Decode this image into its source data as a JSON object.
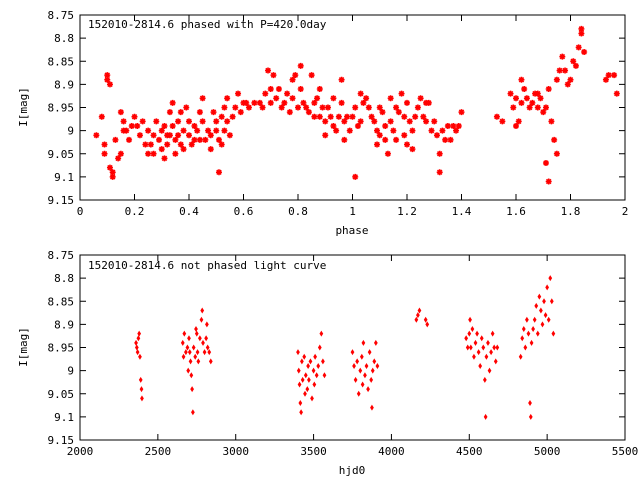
{
  "chart_data": [
    {
      "type": "scatter",
      "title": "152010-2814.6 phased with P=420.0day",
      "xlabel": "phase",
      "ylabel": "I[mag]",
      "xlim": [
        0,
        2
      ],
      "ylim": [
        9.15,
        8.75
      ],
      "y_inverted": true,
      "xticks": [
        "0",
        "0.2",
        "0.4",
        "0.6",
        "0.8",
        "1",
        "1.2",
        "1.4",
        "1.6",
        "1.8",
        "2"
      ],
      "yticks": [
        "8.75",
        "8.8",
        "8.85",
        "8.9",
        "8.95",
        "9",
        "9.05",
        "9.1",
        "9.15"
      ],
      "marker_color": "#ff0000",
      "grid": false,
      "points": [
        [
          0.06,
          9.01
        ],
        [
          0.08,
          8.97
        ],
        [
          0.09,
          9.05
        ],
        [
          0.09,
          9.03
        ],
        [
          0.1,
          8.89
        ],
        [
          0.1,
          8.88
        ],
        [
          0.11,
          8.9
        ],
        [
          0.11,
          9.08
        ],
        [
          0.12,
          9.1
        ],
        [
          0.12,
          9.09
        ],
        [
          0.13,
          9.02
        ],
        [
          0.14,
          9.06
        ],
        [
          0.15,
          9.05
        ],
        [
          0.15,
          8.96
        ],
        [
          0.16,
          8.98
        ],
        [
          0.16,
          9.0
        ],
        [
          0.17,
          9.0
        ],
        [
          0.18,
          9.02
        ],
        [
          0.19,
          8.99
        ],
        [
          0.2,
          8.97
        ],
        [
          0.21,
          8.99
        ],
        [
          0.22,
          9.01
        ],
        [
          0.23,
          8.98
        ],
        [
          0.24,
          9.03
        ],
        [
          0.25,
          9.0
        ],
        [
          0.25,
          9.05
        ],
        [
          0.26,
          9.03
        ],
        [
          0.27,
          9.01
        ],
        [
          0.27,
          9.05
        ],
        [
          0.28,
          8.98
        ],
        [
          0.29,
          9.02
        ],
        [
          0.3,
          9.0
        ],
        [
          0.3,
          9.04
        ],
        [
          0.31,
          9.06
        ],
        [
          0.31,
          8.99
        ],
        [
          0.32,
          9.01
        ],
        [
          0.32,
          9.03
        ],
        [
          0.33,
          8.96
        ],
        [
          0.33,
          9.01
        ],
        [
          0.34,
          8.94
        ],
        [
          0.34,
          8.99
        ],
        [
          0.35,
          9.02
        ],
        [
          0.35,
          9.05
        ],
        [
          0.36,
          8.98
        ],
        [
          0.36,
          9.01
        ],
        [
          0.37,
          9.03
        ],
        [
          0.37,
          8.96
        ],
        [
          0.38,
          9.0
        ],
        [
          0.38,
          9.04
        ],
        [
          0.39,
          8.95
        ],
        [
          0.4,
          8.98
        ],
        [
          0.4,
          9.01
        ],
        [
          0.41,
          9.03
        ],
        [
          0.42,
          8.99
        ],
        [
          0.42,
          9.02
        ],
        [
          0.43,
          9.0
        ],
        [
          0.44,
          8.96
        ],
        [
          0.44,
          9.02
        ],
        [
          0.45,
          8.98
        ],
        [
          0.45,
          8.93
        ],
        [
          0.46,
          9.02
        ],
        [
          0.47,
          9.0
        ],
        [
          0.48,
          9.01
        ],
        [
          0.48,
          9.04
        ],
        [
          0.49,
          8.96
        ],
        [
          0.5,
          9.0
        ],
        [
          0.5,
          8.98
        ],
        [
          0.51,
          9.02
        ],
        [
          0.51,
          9.09
        ],
        [
          0.52,
          9.03
        ],
        [
          0.52,
          8.97
        ],
        [
          0.53,
          8.95
        ],
        [
          0.53,
          9.0
        ],
        [
          0.54,
          8.93
        ],
        [
          0.54,
          8.98
        ],
        [
          0.55,
          9.01
        ],
        [
          0.56,
          8.97
        ],
        [
          0.57,
          8.95
        ],
        [
          0.58,
          8.92
        ],
        [
          0.59,
          8.96
        ],
        [
          0.6,
          8.94
        ],
        [
          0.61,
          8.94
        ],
        [
          0.62,
          8.95
        ],
        [
          0.64,
          8.94
        ],
        [
          0.66,
          8.94
        ],
        [
          0.67,
          8.95
        ],
        [
          0.68,
          8.92
        ],
        [
          0.69,
          8.87
        ],
        [
          0.7,
          8.91
        ],
        [
          0.7,
          8.94
        ],
        [
          0.71,
          8.88
        ],
        [
          0.72,
          8.93
        ],
        [
          0.73,
          8.91
        ],
        [
          0.74,
          8.95
        ],
        [
          0.75,
          8.94
        ],
        [
          0.76,
          8.92
        ],
        [
          0.77,
          8.96
        ],
        [
          0.78,
          8.93
        ],
        [
          0.78,
          8.89
        ],
        [
          0.79,
          8.88
        ],
        [
          0.8,
          8.95
        ],
        [
          0.81,
          8.86
        ],
        [
          0.81,
          8.91
        ],
        [
          0.82,
          8.94
        ],
        [
          0.83,
          8.95
        ],
        [
          0.84,
          8.96
        ],
        [
          0.85,
          8.88
        ],
        [
          0.86,
          8.94
        ],
        [
          0.86,
          8.97
        ],
        [
          0.87,
          8.93
        ],
        [
          0.88,
          8.97
        ],
        [
          0.88,
          8.91
        ],
        [
          0.89,
          8.95
        ],
        [
          0.9,
          8.98
        ],
        [
          0.9,
          9.01
        ],
        [
          0.91,
          8.95
        ],
        [
          0.92,
          8.97
        ],
        [
          0.93,
          8.99
        ],
        [
          0.93,
          8.93
        ],
        [
          0.94,
          9.0
        ],
        [
          0.95,
          8.97
        ],
        [
          0.96,
          8.89
        ],
        [
          0.96,
          8.94
        ],
        [
          0.97,
          8.98
        ],
        [
          0.97,
          9.02
        ],
        [
          0.98,
          8.97
        ],
        [
          0.99,
          9.0
        ],
        [
          1.0,
          8.97
        ],
        [
          1.01,
          8.95
        ],
        [
          1.01,
          9.1
        ],
        [
          1.02,
          8.99
        ],
        [
          1.03,
          8.98
        ],
        [
          1.03,
          8.92
        ],
        [
          1.04,
          8.94
        ],
        [
          1.05,
          8.93
        ],
        [
          1.06,
          8.95
        ],
        [
          1.07,
          8.97
        ],
        [
          1.08,
          8.98
        ],
        [
          1.09,
          9.0
        ],
        [
          1.09,
          9.03
        ],
        [
          1.1,
          8.95
        ],
        [
          1.1,
          9.01
        ],
        [
          1.11,
          8.96
        ],
        [
          1.12,
          8.99
        ],
        [
          1.12,
          9.02
        ],
        [
          1.13,
          9.05
        ],
        [
          1.14,
          8.98
        ],
        [
          1.14,
          8.93
        ],
        [
          1.15,
          9.0
        ],
        [
          1.16,
          9.02
        ],
        [
          1.16,
          8.95
        ],
        [
          1.17,
          8.96
        ],
        [
          1.18,
          8.92
        ],
        [
          1.19,
          8.97
        ],
        [
          1.19,
          9.01
        ],
        [
          1.2,
          9.03
        ],
        [
          1.2,
          8.94
        ],
        [
          1.21,
          8.98
        ],
        [
          1.22,
          9.0
        ],
        [
          1.22,
          9.04
        ],
        [
          1.23,
          8.97
        ],
        [
          1.24,
          8.95
        ],
        [
          1.25,
          8.93
        ],
        [
          1.26,
          8.97
        ],
        [
          1.27,
          8.94
        ],
        [
          1.27,
          8.98
        ],
        [
          1.28,
          8.94
        ],
        [
          1.29,
          9.0
        ],
        [
          1.3,
          8.98
        ],
        [
          1.31,
          9.01
        ],
        [
          1.32,
          9.05
        ],
        [
          1.32,
          9.09
        ],
        [
          1.33,
          9.0
        ],
        [
          1.34,
          9.02
        ],
        [
          1.35,
          8.99
        ],
        [
          1.36,
          9.02
        ],
        [
          1.37,
          8.99
        ],
        [
          1.38,
          9.0
        ],
        [
          1.39,
          8.99
        ],
        [
          1.4,
          8.96
        ],
        [
          1.53,
          8.97
        ],
        [
          1.55,
          8.98
        ],
        [
          1.58,
          8.92
        ],
        [
          1.59,
          8.95
        ],
        [
          1.6,
          8.93
        ],
        [
          1.6,
          8.99
        ],
        [
          1.61,
          8.98
        ],
        [
          1.62,
          8.94
        ],
        [
          1.62,
          8.89
        ],
        [
          1.63,
          8.91
        ],
        [
          1.64,
          8.93
        ],
        [
          1.65,
          8.95
        ],
        [
          1.66,
          8.94
        ],
        [
          1.67,
          8.92
        ],
        [
          1.68,
          8.92
        ],
        [
          1.68,
          8.95
        ],
        [
          1.69,
          8.93
        ],
        [
          1.7,
          8.96
        ],
        [
          1.71,
          8.95
        ],
        [
          1.71,
          9.07
        ],
        [
          1.72,
          9.11
        ],
        [
          1.72,
          8.91
        ],
        [
          1.73,
          8.98
        ],
        [
          1.74,
          9.02
        ],
        [
          1.75,
          9.05
        ],
        [
          1.75,
          8.89
        ],
        [
          1.76,
          8.87
        ],
        [
          1.77,
          8.84
        ],
        [
          1.78,
          8.87
        ],
        [
          1.79,
          8.9
        ],
        [
          1.8,
          8.89
        ],
        [
          1.81,
          8.85
        ],
        [
          1.82,
          8.86
        ],
        [
          1.83,
          8.82
        ],
        [
          1.84,
          8.79
        ],
        [
          1.84,
          8.78
        ],
        [
          1.85,
          8.83
        ],
        [
          1.93,
          8.89
        ],
        [
          1.94,
          8.88
        ],
        [
          1.96,
          8.88
        ],
        [
          1.97,
          8.92
        ]
      ]
    },
    {
      "type": "scatter",
      "title": "152010-2814.6 not phased light curve",
      "xlabel": "hjd0",
      "ylabel": "I[mag]",
      "xlim": [
        2000,
        5500
      ],
      "ylim": [
        9.15,
        8.75
      ],
      "y_inverted": true,
      "xticks": [
        "2000",
        "2500",
        "3000",
        "3500",
        "4000",
        "4500",
        "5000",
        "5500"
      ],
      "yticks": [
        "8.75",
        "8.8",
        "8.85",
        "8.9",
        "8.95",
        "9",
        "9.05",
        "9.1",
        "9.15"
      ],
      "marker_color": "#ff0000",
      "grid": false,
      "points": [
        [
          2360,
          8.94
        ],
        [
          2365,
          8.95
        ],
        [
          2370,
          8.96
        ],
        [
          2375,
          8.93
        ],
        [
          2380,
          8.92
        ],
        [
          2385,
          8.97
        ],
        [
          2390,
          9.02
        ],
        [
          2395,
          9.04
        ],
        [
          2398,
          9.06
        ],
        [
          2660,
          8.94
        ],
        [
          2665,
          8.97
        ],
        [
          2670,
          8.92
        ],
        [
          2680,
          8.96
        ],
        [
          2690,
          8.95
        ],
        [
          2695,
          9.0
        ],
        [
          2700,
          8.93
        ],
        [
          2705,
          8.96
        ],
        [
          2710,
          8.98
        ],
        [
          2715,
          9.01
        ],
        [
          2720,
          9.04
        ],
        [
          2725,
          9.09
        ],
        [
          2730,
          8.95
        ],
        [
          2740,
          8.97
        ],
        [
          2745,
          8.91
        ],
        [
          2750,
          8.92
        ],
        [
          2755,
          8.96
        ],
        [
          2760,
          8.98
        ],
        [
          2770,
          8.93
        ],
        [
          2780,
          8.89
        ],
        [
          2785,
          8.87
        ],
        [
          2790,
          8.94
        ],
        [
          2800,
          8.96
        ],
        [
          2810,
          8.93
        ],
        [
          2815,
          8.9
        ],
        [
          2820,
          8.95
        ],
        [
          2830,
          8.96
        ],
        [
          2840,
          8.98
        ],
        [
          3400,
          8.96
        ],
        [
          3405,
          9.0
        ],
        [
          3410,
          9.03
        ],
        [
          3415,
          9.07
        ],
        [
          3420,
          9.09
        ],
        [
          3425,
          8.98
        ],
        [
          3430,
          9.02
        ],
        [
          3440,
          8.97
        ],
        [
          3445,
          9.05
        ],
        [
          3450,
          9.01
        ],
        [
          3460,
          9.04
        ],
        [
          3465,
          8.99
        ],
        [
          3470,
          9.02
        ],
        [
          3480,
          8.98
        ],
        [
          3490,
          9.06
        ],
        [
          3500,
          9.0
        ],
        [
          3505,
          9.03
        ],
        [
          3510,
          8.97
        ],
        [
          3520,
          9.01
        ],
        [
          3530,
          8.99
        ],
        [
          3540,
          8.95
        ],
        [
          3550,
          8.92
        ],
        [
          3560,
          8.98
        ],
        [
          3570,
          9.01
        ],
        [
          3750,
          8.96
        ],
        [
          3760,
          8.99
        ],
        [
          3770,
          9.02
        ],
        [
          3780,
          8.98
        ],
        [
          3790,
          9.05
        ],
        [
          3800,
          9.0
        ],
        [
          3810,
          8.97
        ],
        [
          3815,
          9.03
        ],
        [
          3820,
          8.94
        ],
        [
          3830,
          9.01
        ],
        [
          3840,
          8.99
        ],
        [
          3850,
          9.04
        ],
        [
          3860,
          8.96
        ],
        [
          3870,
          9.02
        ],
        [
          3875,
          9.08
        ],
        [
          3880,
          9.0
        ],
        [
          3890,
          8.98
        ],
        [
          3900,
          8.94
        ],
        [
          3910,
          8.99
        ],
        [
          4160,
          8.89
        ],
        [
          4170,
          8.88
        ],
        [
          4180,
          8.87
        ],
        [
          4220,
          8.89
        ],
        [
          4230,
          8.9
        ],
        [
          4480,
          8.93
        ],
        [
          4490,
          8.95
        ],
        [
          4500,
          8.92
        ],
        [
          4505,
          8.89
        ],
        [
          4510,
          8.95
        ],
        [
          4520,
          8.91
        ],
        [
          4530,
          8.97
        ],
        [
          4540,
          8.94
        ],
        [
          4550,
          8.92
        ],
        [
          4560,
          8.96
        ],
        [
          4570,
          8.99
        ],
        [
          4580,
          8.93
        ],
        [
          4590,
          8.95
        ],
        [
          4600,
          9.02
        ],
        [
          4605,
          9.1
        ],
        [
          4610,
          8.97
        ],
        [
          4620,
          8.94
        ],
        [
          4630,
          9.0
        ],
        [
          4640,
          8.96
        ],
        [
          4650,
          8.92
        ],
        [
          4660,
          8.95
        ],
        [
          4670,
          8.98
        ],
        [
          4680,
          8.95
        ],
        [
          4830,
          8.97
        ],
        [
          4840,
          8.93
        ],
        [
          4850,
          8.91
        ],
        [
          4860,
          8.95
        ],
        [
          4870,
          8.89
        ],
        [
          4880,
          8.92
        ],
        [
          4890,
          9.07
        ],
        [
          4895,
          9.1
        ],
        [
          4900,
          8.94
        ],
        [
          4910,
          8.91
        ],
        [
          4920,
          8.89
        ],
        [
          4930,
          8.86
        ],
        [
          4940,
          8.92
        ],
        [
          4950,
          8.84
        ],
        [
          4960,
          8.87
        ],
        [
          4970,
          8.9
        ],
        [
          4980,
          8.85
        ],
        [
          4990,
          8.88
        ],
        [
          5000,
          8.82
        ],
        [
          5010,
          8.89
        ],
        [
          5020,
          8.8
        ],
        [
          5030,
          8.85
        ],
        [
          5040,
          8.92
        ]
      ]
    }
  ]
}
